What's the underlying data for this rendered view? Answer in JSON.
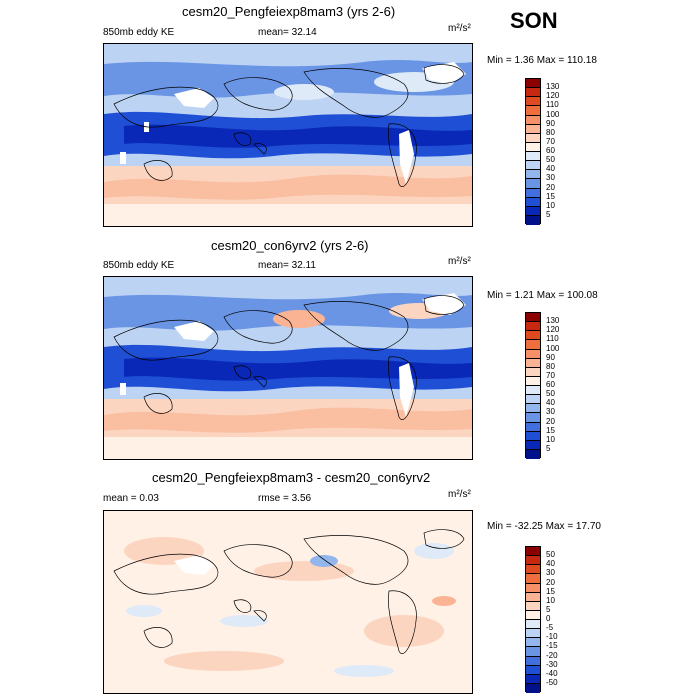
{
  "season": "SON",
  "panels": [
    {
      "title": "cesm20_Pengfeiexp8mam3 (yrs 2-6)",
      "left_label": "850mb eddy KE",
      "center_label": "mean=  32.14",
      "units": "m²/s²",
      "minmax": "Min =   1.36 Max = 110.18",
      "colorbar": {
        "levels": [
          "130",
          "120",
          "110",
          "100",
          "90",
          "80",
          "70",
          "60",
          "50",
          "40",
          "30",
          "20",
          "15",
          "10",
          "5"
        ],
        "colors": [
          "#8b0000",
          "#c62810",
          "#e04a20",
          "#ef6e3e",
          "#f59068",
          "#fab494",
          "#fcd5c0",
          "#fff1e6",
          "#dfeaf8",
          "#bcd3f3",
          "#93b6ec",
          "#6a95e4",
          "#4170de",
          "#1f4fd4",
          "#0a28b8",
          "#00118a"
        ]
      }
    },
    {
      "title": "cesm20_con6yrv2 (yrs 2-6)",
      "left_label": "850mb eddy KE",
      "center_label": "mean=  32.11",
      "units": "m²/s²",
      "minmax": "Min =   1.21 Max = 100.08",
      "colorbar": {
        "levels": [
          "130",
          "120",
          "110",
          "100",
          "90",
          "80",
          "70",
          "60",
          "50",
          "40",
          "30",
          "20",
          "15",
          "10",
          "5"
        ],
        "colors": [
          "#8b0000",
          "#c62810",
          "#e04a20",
          "#ef6e3e",
          "#f59068",
          "#fab494",
          "#fcd5c0",
          "#fff1e6",
          "#dfeaf8",
          "#bcd3f3",
          "#93b6ec",
          "#6a95e4",
          "#4170de",
          "#1f4fd4",
          "#0a28b8",
          "#00118a"
        ]
      }
    },
    {
      "title": "cesm20_Pengfeiexp8mam3 - cesm20_con6yrv2",
      "left_label": "mean =   0.03",
      "center_label": "rmse =   3.56",
      "units": "m²/s²",
      "minmax": "Min = -32.25 Max =  17.70",
      "colorbar": {
        "levels": [
          "50",
          "40",
          "30",
          "20",
          "15",
          "10",
          "5",
          "0",
          "-5",
          "-10",
          "-15",
          "-20",
          "-30",
          "-40",
          "-50"
        ],
        "colors": [
          "#8b0000",
          "#c62810",
          "#e04a20",
          "#ef6e3e",
          "#f59068",
          "#fab494",
          "#fcd5c0",
          "#fff1e6",
          "#dfeaf8",
          "#bcd3f3",
          "#93b6ec",
          "#6a95e4",
          "#4170de",
          "#1f4fd4",
          "#0a28b8",
          "#00118a"
        ]
      }
    }
  ]
}
